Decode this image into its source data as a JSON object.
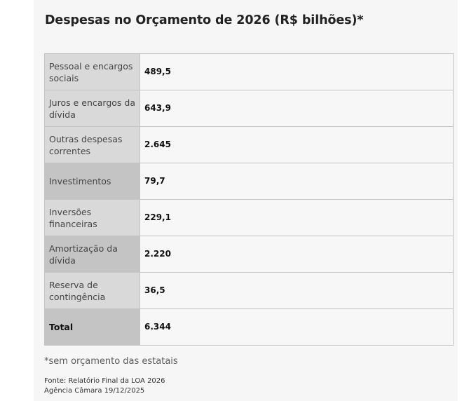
{
  "title": "Despesas no Orçamento de 2026 (R$ bilhões)*",
  "rows": [
    {
      "label": "Pessoal e encargos sociais",
      "value": "489,5"
    },
    {
      "label": "Juros e encargos da dívida",
      "value": "643,9"
    },
    {
      "label": "Outras despesas correntes",
      "value": "2.645"
    },
    {
      "label": "Investimentos",
      "value": "79,7"
    },
    {
      "label": "Inversões financeiras",
      "value": "229,1"
    },
    {
      "label": "Amortização da dívida",
      "value": "2.220"
    },
    {
      "label": "Reserva de contingência",
      "value": "36,5"
    },
    {
      "label": "Total",
      "value": "6.344"
    }
  ],
  "footnote": "*sem orçamento das estatais",
  "source_line1": "Fonte: Relatório Final da LOA 2026",
  "source_line2": "Agência Câmara 19/12/2025",
  "colors": {
    "label_light": "#d9d9d9",
    "label_dark": "#c4c4c4",
    "value_bg": "#f7f7f7",
    "border": "#c4c4c4"
  }
}
